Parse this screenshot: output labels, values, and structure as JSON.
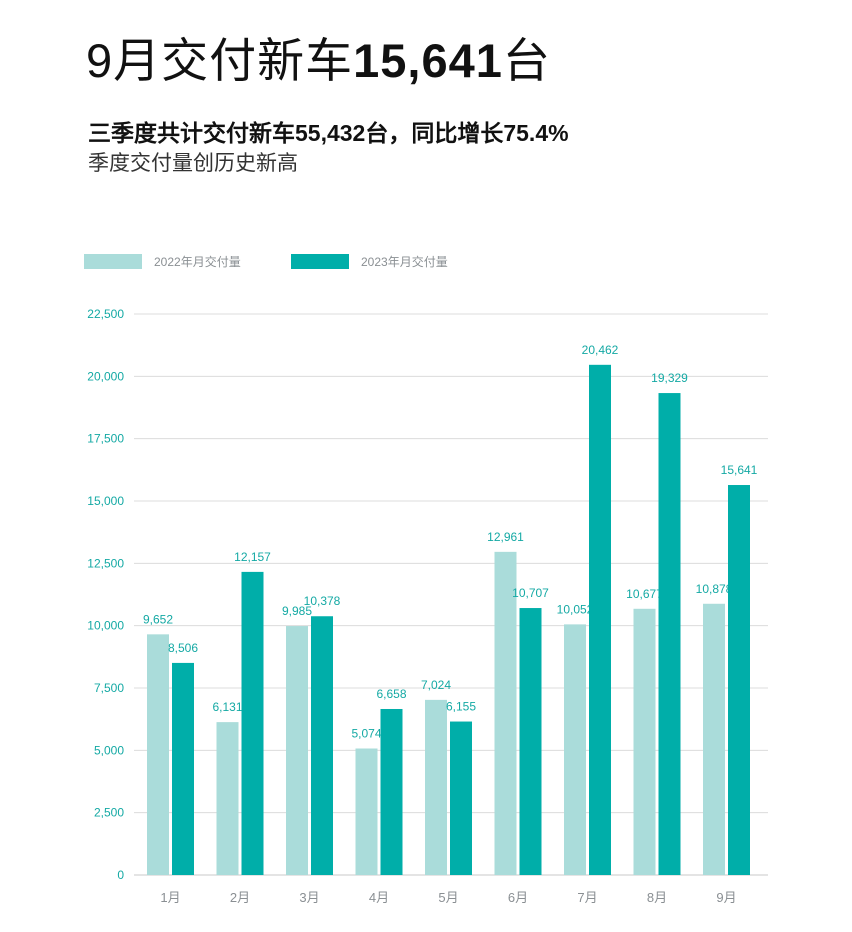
{
  "headline": {
    "prefix": "9月交付新车",
    "number": "15,641",
    "suffix": "台"
  },
  "subtitle": "三季度共计交付新车55,432台，同比增长75.4%",
  "subtitle2": "季度交付量创历史新高",
  "colors": {
    "series_2022": "#aadcda",
    "series_2023": "#00aea9",
    "axis_text": "#14a9a4",
    "grid": "#dcdcdc"
  },
  "chart_data": {
    "type": "bar",
    "categories": [
      "1月",
      "2月",
      "3月",
      "4月",
      "5月",
      "6月",
      "7月",
      "8月",
      "9月"
    ],
    "series": [
      {
        "name": "2022年月交付量",
        "values": [
          9652,
          6131,
          9985,
          5074,
          7024,
          12961,
          10052,
          10677,
          10878
        ],
        "labels": [
          "9,652",
          "6,131",
          "9,985",
          "5,074",
          "7,024",
          "12,961",
          "10,052",
          "10,677",
          "10,878"
        ]
      },
      {
        "name": "2023年月交付量",
        "values": [
          8506,
          12157,
          10378,
          6658,
          6155,
          10707,
          20462,
          19329,
          15641
        ],
        "labels": [
          "8,506",
          "12,157",
          "10,378",
          "6,658",
          "6,155",
          "10,707",
          "20,462",
          "19,329",
          "15,641"
        ]
      }
    ],
    "ylim": [
      0,
      22500
    ],
    "yticks": [
      0,
      2500,
      5000,
      7500,
      10000,
      12500,
      15000,
      17500,
      20000,
      22500
    ],
    "ytick_labels": [
      "0",
      "2,500",
      "5,000",
      "7,500",
      "10,000",
      "12,500",
      "15,000",
      "17,500",
      "20,000",
      "22,500"
    ],
    "grid": true,
    "legend": "top-left"
  }
}
